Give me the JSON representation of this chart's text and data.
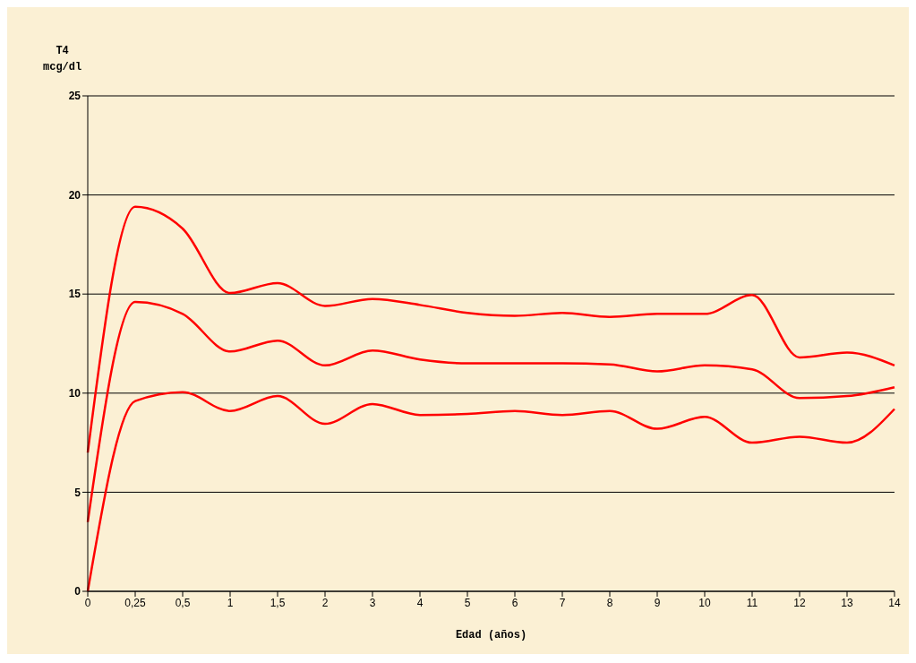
{
  "chart_data": {
    "type": "line",
    "xlabel": "Edad (años)",
    "ylabel": "T4\nmcg/dl",
    "categories": [
      "0",
      "0,25",
      "0,5",
      "1",
      "1,5",
      "2",
      "3",
      "4",
      "5",
      "6",
      "7",
      "8",
      "9",
      "10",
      "11",
      "12",
      "13",
      "14"
    ],
    "series": [
      {
        "color": "#ff0000",
        "values": [
          7.0,
          19.4,
          18.3,
          15.05,
          15.55,
          14.4,
          14.75,
          14.45,
          14.05,
          13.9,
          14.05,
          13.85,
          14.0,
          14.0,
          14.95,
          11.8,
          12.05,
          11.4
        ]
      },
      {
        "color": "#ff0000",
        "values": [
          3.5,
          14.6,
          14.0,
          12.1,
          12.65,
          11.4,
          12.15,
          11.7,
          11.5,
          11.5,
          11.5,
          11.45,
          11.1,
          11.4,
          11.2,
          9.75,
          9.85,
          10.3
        ]
      },
      {
        "color": "#ff0000",
        "values": [
          0,
          9.6,
          10.05,
          9.1,
          9.85,
          8.45,
          9.45,
          8.9,
          8.95,
          9.1,
          8.9,
          9.1,
          8.2,
          8.8,
          7.5,
          7.8,
          7.5,
          9.2
        ]
      }
    ],
    "ylim": [
      0,
      25
    ],
    "yticks": [
      0,
      5,
      10,
      15,
      20,
      25
    ],
    "grid": "y",
    "marker": "none",
    "line_style": "solid"
  }
}
